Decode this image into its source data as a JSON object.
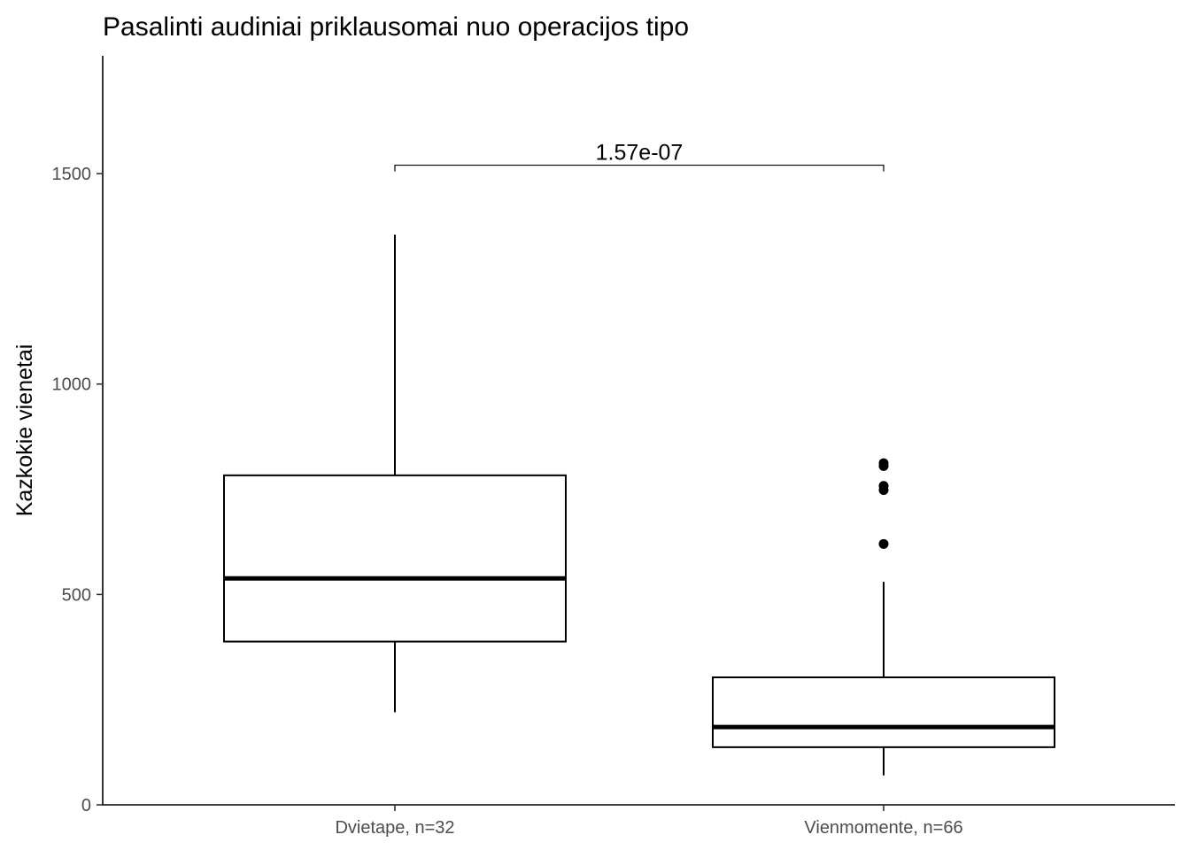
{
  "chart_data": {
    "type": "box",
    "title": "Pasalinti audiniai priklausomai nuo operacijos tipo",
    "xlabel": "",
    "ylabel": "Kazkokie vienetai",
    "ylim": [
      0,
      1780
    ],
    "yticks": [
      0,
      500,
      1000,
      1500
    ],
    "grid": false,
    "legend": "none",
    "categories": [
      "Dvietape, n=32",
      "Vienmomente, n=66"
    ],
    "boxes": [
      {
        "category": "Dvietape, n=32",
        "whisker_low": 220,
        "q1": 388,
        "median": 538,
        "q3": 783,
        "whisker_high": 1355,
        "outliers": []
      },
      {
        "category": "Vienmomente, n=66",
        "whisker_low": 70,
        "q1": 137,
        "median": 185,
        "q3": 303,
        "whisker_high": 530,
        "outliers": [
          620,
          748,
          758,
          805,
          812
        ]
      }
    ],
    "annotations": [
      {
        "text": "1.57e-07",
        "from": "Dvietape, n=32",
        "to": "Vienmomente, n=66",
        "y": 1520
      }
    ]
  }
}
